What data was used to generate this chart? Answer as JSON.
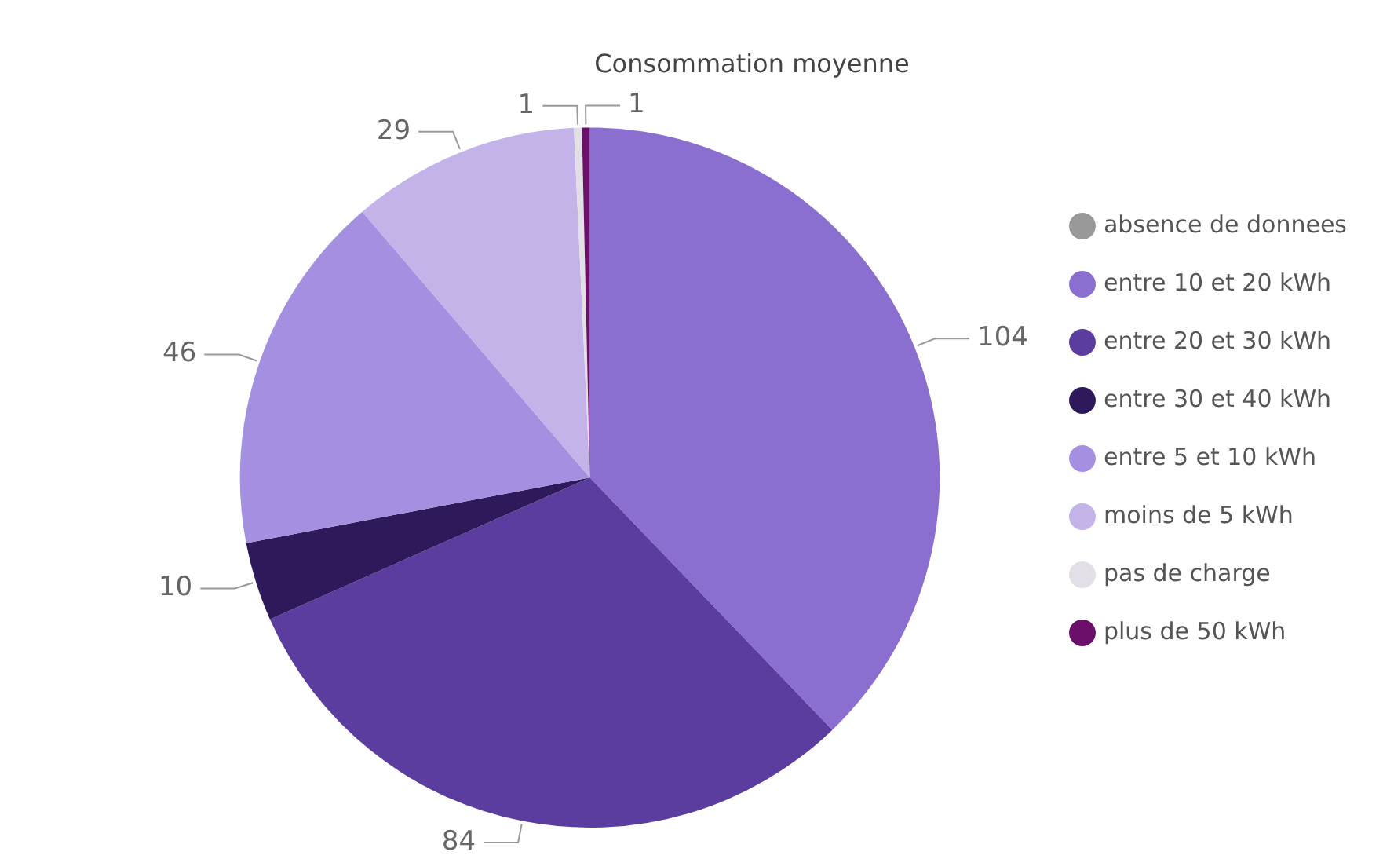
{
  "chart_data": {
    "type": "pie",
    "title": "Consommation moyenne",
    "categories": [
      "absence de donnees",
      "entre 10 et 20 kWh",
      "entre 20 et 30 kWh",
      "entre 30 et 40 kWh",
      "entre 5 et 10 kWh",
      "moins de 5 kWh",
      "pas de charge",
      "plus de 50 kWh"
    ],
    "values": [
      0,
      104,
      84,
      10,
      46,
      29,
      1,
      1
    ],
    "value_labels": [
      null,
      "104",
      "84",
      "10",
      "46",
      "29",
      "1",
      "1"
    ],
    "colors": [
      "#999999",
      "#8b6fd0",
      "#5a3d9e",
      "#2e1a5a",
      "#a58fe0",
      "#c3b3e8",
      "#e2e0e6",
      "#6a0f6a"
    ],
    "legend": "right"
  }
}
